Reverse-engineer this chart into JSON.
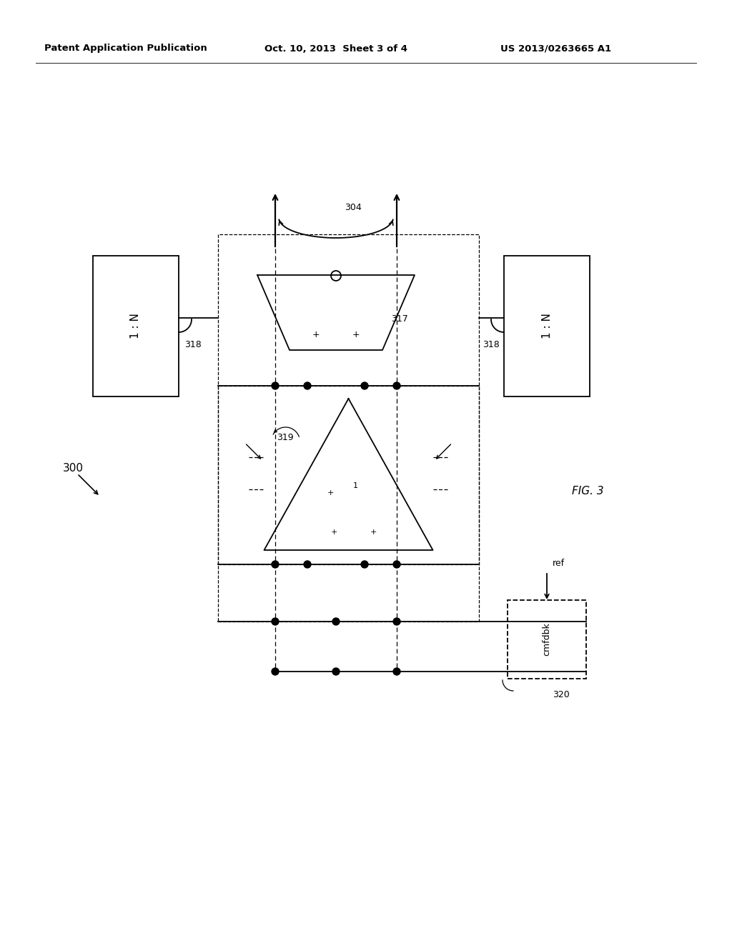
{
  "bg_color": "#ffffff",
  "header_left": "Patent Application Publication",
  "header_mid": "Oct. 10, 2013  Sheet 3 of 4",
  "header_right": "US 2013/0263665 A1",
  "fig_label": "FIG. 3",
  "diagram_label": "300",
  "label_304": "304",
  "label_317": "317",
  "label_318_left": "318",
  "label_318_right": "318",
  "label_319": "319",
  "label_320": "320",
  "label_ref": "ref",
  "label_cmfdbk": "cmfdbk",
  "label_1N_left": "1 : N",
  "label_1N_right": "1 : N",
  "lw_solid": 1.3,
  "lw_dashed": 0.9
}
